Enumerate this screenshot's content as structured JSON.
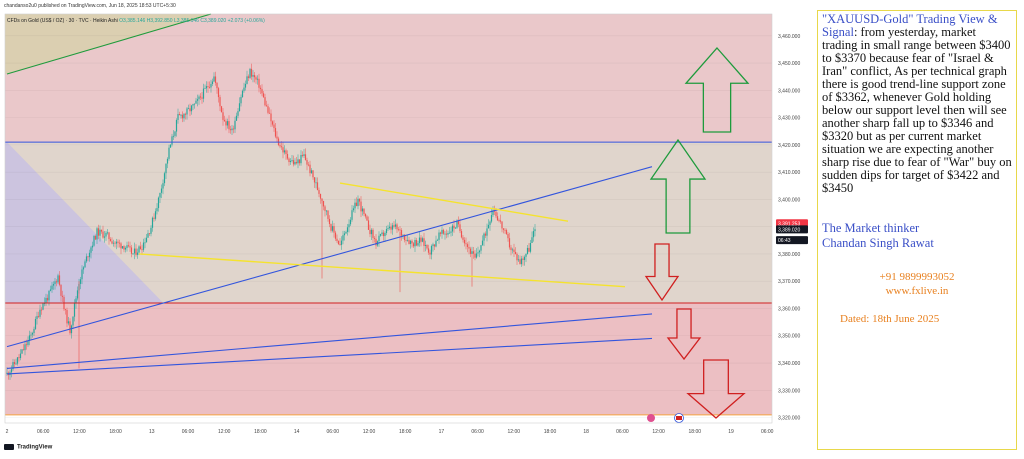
{
  "header": {
    "publisher": "chandanso2u0 published on TradingView.com, Jun 18, 2025 18:53 UTC+5:30",
    "symbol": "CFDs on Gold (US$ / OZ) · 30 · TVC · Heikin Ashi",
    "ohlc": "O3,385.146 H3,392.850 L3,385.146 C3,389.020 +2.073 (+0.06%)"
  },
  "footer": {
    "logo_text": "TradingView"
  },
  "colors": {
    "bull": "#26a69a",
    "bear": "#ef5350",
    "blue_line": "#3355dd",
    "yellow_line": "#f5e32e",
    "green_line": "#1e9b3c",
    "red_line": "#d02020",
    "zone_pink": "#e8c2c4",
    "zone_violet": "#c6bedb",
    "zone_tan": "#e3d8c9",
    "zone_red": "#eab8bc",
    "price_tag_red": "#f23645",
    "price_tag_dark": "#131722"
  },
  "chart_data": {
    "type": "candlestick",
    "style": "Heikin Ashi",
    "timeframe": "30",
    "y_axis": {
      "ticks": [
        3460000,
        3450000,
        3440000,
        3430000,
        3420000,
        3410000,
        3400000,
        3390000,
        3380000,
        3370000,
        3360000,
        3350000,
        3340000,
        3330000,
        3320000
      ],
      "tick_labels": [
        "3,460.000",
        "3,450.000",
        "3,440.000",
        "3,430.000",
        "3,420.000",
        "3,410.000",
        "3,400.000",
        "3,390.000",
        "3,380.000",
        "3,370.000",
        "3,360.000",
        "3,350.000",
        "3,340.000",
        "3,330.000",
        "3,320.000"
      ],
      "ylim": [
        3318,
        3468
      ]
    },
    "x_axis": {
      "tick_labels": [
        "2",
        "06:00",
        "12:00",
        "18:00",
        "13",
        "06:00",
        "12:00",
        "18:00",
        "14",
        "06:00",
        "12:00",
        "18:00",
        "17",
        "06:00",
        "12:00",
        "18:00",
        "18",
        "06:00",
        "12:00",
        "18:00",
        "19",
        "06:00",
        "12:00"
      ]
    },
    "price_tags": [
      {
        "label": "3,391.253",
        "value": 3391.253,
        "kind": "red"
      },
      {
        "label": "3,389.020",
        "value": 3389.02,
        "kind": "dark"
      },
      {
        "label": "06:43",
        "value": 3385.8,
        "kind": "dark"
      }
    ],
    "anchors": [
      [
        0,
        3336
      ],
      [
        8,
        3342
      ],
      [
        16,
        3350
      ],
      [
        22,
        3360
      ],
      [
        28,
        3365
      ],
      [
        34,
        3372
      ],
      [
        38,
        3360
      ],
      [
        42,
        3352
      ],
      [
        48,
        3370
      ],
      [
        54,
        3380
      ],
      [
        60,
        3388
      ],
      [
        66,
        3387
      ],
      [
        72,
        3384
      ],
      [
        78,
        3383
      ],
      [
        84,
        3380
      ],
      [
        90,
        3383
      ],
      [
        96,
        3390
      ],
      [
        102,
        3402
      ],
      [
        108,
        3418
      ],
      [
        114,
        3430
      ],
      [
        120,
        3432
      ],
      [
        126,
        3435
      ],
      [
        132,
        3440
      ],
      [
        138,
        3445
      ],
      [
        144,
        3430
      ],
      [
        150,
        3425
      ],
      [
        156,
        3438
      ],
      [
        162,
        3447
      ],
      [
        168,
        3442
      ],
      [
        174,
        3432
      ],
      [
        180,
        3422
      ],
      [
        186,
        3416
      ],
      [
        192,
        3413
      ],
      [
        198,
        3416
      ],
      [
        204,
        3408
      ],
      [
        210,
        3400
      ],
      [
        216,
        3390
      ],
      [
        222,
        3383
      ],
      [
        228,
        3392
      ],
      [
        234,
        3400
      ],
      [
        240,
        3391
      ],
      [
        246,
        3384
      ],
      [
        252,
        3388
      ],
      [
        258,
        3390
      ],
      [
        264,
        3387
      ],
      [
        270,
        3384
      ],
      [
        276,
        3385
      ],
      [
        282,
        3381
      ],
      [
        288,
        3387
      ],
      [
        294,
        3388
      ],
      [
        300,
        3391
      ],
      [
        306,
        3384
      ],
      [
        312,
        3378
      ],
      [
        318,
        3386
      ],
      [
        324,
        3397
      ],
      [
        330,
        3390
      ],
      [
        336,
        3382
      ],
      [
        342,
        3377
      ],
      [
        348,
        3382
      ],
      [
        352,
        3389
      ]
    ],
    "candle_count": 352,
    "zones": [
      {
        "name": "upper-pink",
        "from": 3421,
        "to": 3468,
        "color": "#e8c2c4"
      },
      {
        "name": "middle-violet",
        "from": 3362,
        "to": 3421,
        "color": "#c6bedb"
      },
      {
        "name": "lower-red",
        "from": 3321,
        "to": 3362,
        "color": "#eab8bc"
      }
    ],
    "horizontal_lines": [
      {
        "name": "resistance",
        "value": 3421,
        "color": "#3355dd"
      },
      {
        "name": "support",
        "value": 3362,
        "color": "#d02020"
      },
      {
        "name": "base",
        "value": 3321,
        "color": "#f4a340"
      }
    ],
    "trend_lines": [
      {
        "name": "main-uptrend",
        "from": [
          0,
          3346
        ],
        "to": [
          430,
          3412
        ],
        "color": "#3355dd"
      },
      {
        "name": "lower-trend-1",
        "from": [
          0,
          3338
        ],
        "to": [
          430,
          3358
        ],
        "color": "#3355dd"
      },
      {
        "name": "lower-trend-2",
        "from": [
          0,
          3336
        ],
        "to": [
          430,
          3349
        ],
        "color": "#3355dd"
      },
      {
        "name": "upper-triangle-yellow",
        "from": [
          222,
          3406
        ],
        "to": [
          374,
          3392
        ],
        "color": "#f5e32e"
      },
      {
        "name": "lower-triangle-yellow",
        "from": [
          88,
          3380
        ],
        "to": [
          412,
          3368
        ],
        "color": "#f5e32e"
      },
      {
        "name": "green-channel",
        "from": [
          0,
          3446
        ],
        "to": [
          136,
          3468
        ],
        "color": "#1e9b3c"
      }
    ]
  },
  "note": {
    "title": "\"XAUUSD-Gold\" Trading View & Signal",
    "body": ": from yesterday, market trading in small range between $3400 to $3370 because fear of \"Israel & Iran\" conflict, As per technical graph there is good trend-line support zone of $3362, whenever Gold holding below our support level then will see another sharp fall up to $3346 and $3320 but as per current market situation we are expecting another sharp rise due to fear of \"War\" buy on sudden dips for target of $3422 and $3450",
    "sig_line1": "The Market thinker",
    "sig_line2": "Chandan Singh Rawat",
    "phone": "+91 9899993052",
    "website": "www.fxlive.in",
    "date": "Dated: 18th June 2025"
  }
}
